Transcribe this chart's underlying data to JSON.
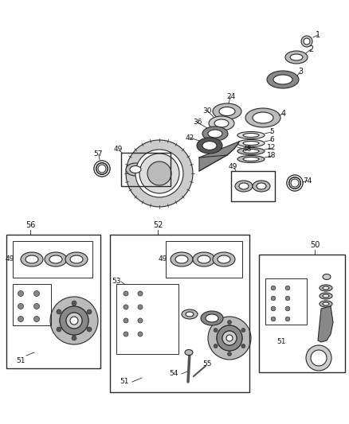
{
  "bg_color": "#ffffff",
  "line_color": "#2a2a2a",
  "fig_width": 4.38,
  "fig_height": 5.33,
  "dpi": 100,
  "gray_dark": "#555555",
  "gray_mid": "#888888",
  "gray_light": "#bbbbbb",
  "gray_vlight": "#dddddd",
  "gray_fill": "#cccccc"
}
